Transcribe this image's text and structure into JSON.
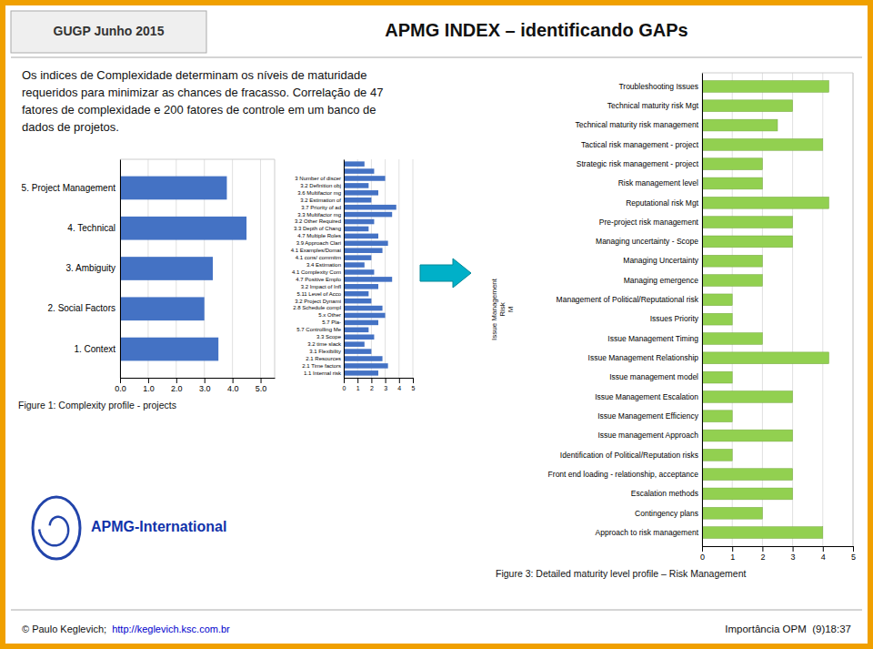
{
  "title": "APMG INDEX – identificando GAPs",
  "subtitle": "GUGP Junho 2015",
  "annotations": [
    {
      "text": "Os indices de Complexidade determinam os níveis de maturidade"
    },
    {
      "text": "requeridos para minimizar as chances de fracasso. Correlação de 47"
    },
    {
      "text": "fatores de complexidade e 200 fatores de controle em um banco de"
    },
    {
      "text": "dados de projetos."
    },
    {
      "text": "APMG-International",
      "color": "#1133AA"
    },
    {
      "text": "© Paulo Keglevich; "
    },
    {
      "text": "http://keglevich.ksc.com.br",
      "color": "#0000CC"
    },
    {
      "text": "Importância OPM  (9)18:37"
    }
  ],
  "chart_data": [
    {
      "type": "bar",
      "orientation": "horizontal",
      "title": "Figure 1: Complexity profile - projects",
      "categories": [
        "1. Context",
        "2. Social Factors",
        "3. Ambiguity",
        "4. Technical",
        "5. Project Management"
      ],
      "values": [
        3.5,
        3.0,
        3.3,
        4.5,
        3.8
      ],
      "color": "#4472C4",
      "xlim": [
        0,
        5.5
      ],
      "xticks": [
        {
          "value": 0,
          "label": "0.0"
        },
        {
          "value": 1,
          "label": "1.0"
        },
        {
          "value": 2,
          "label": "2.0"
        },
        {
          "value": 3,
          "label": "3.0"
        },
        {
          "value": 4,
          "label": "4.0"
        },
        {
          "value": 5,
          "label": "5.0"
        }
      ],
      "grid": true
    },
    {
      "type": "bar",
      "orientation": "horizontal",
      "categories": [
        "1.1 Internal risk",
        "2.1 Time factors",
        "2.1 Resources",
        "3.1 Flexibility",
        "3.2 time slack",
        "3.3 Scope",
        "5.7 Controlling Me",
        "5.7 Pla-",
        "5.x Other",
        "2.8 Schedule compl",
        "3.2 Project Dynami",
        "5.11 Level of Acco",
        "3.2 Impact of Infl",
        "4.7 Positive Emplo",
        "4.1 Complexity Com",
        "3.4 Estimation",
        "4.1 cons/ commitm",
        "4.1 Examples/Domai",
        "3.9 Approach Clari",
        "4.7 Multiple Roles",
        "3.3 Depth of Chang",
        "3.2 Other Required",
        "3.3 Multifactor mg",
        "3.7 Priority of ad",
        "3.2 Estimation of ",
        "3.6 Multifactor mg",
        "3.2 Definition obj",
        "3 Number of discer",
        null,
        null
      ],
      "values": [
        2.5,
        3.2,
        2.8,
        2.0,
        1.5,
        2.2,
        1.8,
        2.5,
        3.0,
        2.8,
        2.0,
        1.8,
        2.5,
        3.5,
        2.2,
        1.5,
        2.0,
        2.8,
        3.2,
        2.5,
        1.8,
        2.2,
        3.5,
        3.8,
        2.0,
        2.5,
        1.8,
        3.0,
        2.2,
        1.5
      ],
      "color": "#4472C4",
      "xlim": [
        0,
        5
      ],
      "xticks": [
        0,
        1,
        2,
        3,
        4,
        5
      ],
      "grid": true
    },
    {
      "type": "bar",
      "orientation": "horizontal",
      "title": "Figure 3: Detailed maturity level profile – Risk Management",
      "ylabel": "Issue Management\nRisk\nM",
      "categories": [
        "Approach to risk management",
        "Contingency plans",
        "Escalation methods",
        "Front end loading - relationship, acceptance",
        "Identification of Political/Reputation risks",
        "Issue management Approach",
        "Issue Management Efficiency",
        "Issue Management Escalation",
        "Issue management  model",
        "Issue Management Relationship",
        "Issue Management Timing",
        "Issues Priority",
        "Management of Political/Reputational  risk",
        "Managing emergence",
        "Managing Uncertainty",
        "Managing uncertainty - Scope",
        "Pre-project risk management",
        "Reputational risk Mgt",
        "Risk management level",
        "Strategic risk management - project",
        "Tactical risk management - project",
        "Technical maturity risk management",
        "Technical maturity risk Mgt",
        "Troubleshooting Issues"
      ],
      "values": [
        4.0,
        2.0,
        3.0,
        3.0,
        1.0,
        3.0,
        1.0,
        3.0,
        1.0,
        4.2,
        2.0,
        1.0,
        1.0,
        2.0,
        2.0,
        3.0,
        3.0,
        4.2,
        2.0,
        2.0,
        4.0,
        2.5,
        3.0,
        4.2
      ],
      "color": "#92D050",
      "xlim": [
        0,
        5
      ],
      "xticks": [
        0,
        1,
        2,
        3,
        4,
        5
      ],
      "grid": true
    }
  ]
}
